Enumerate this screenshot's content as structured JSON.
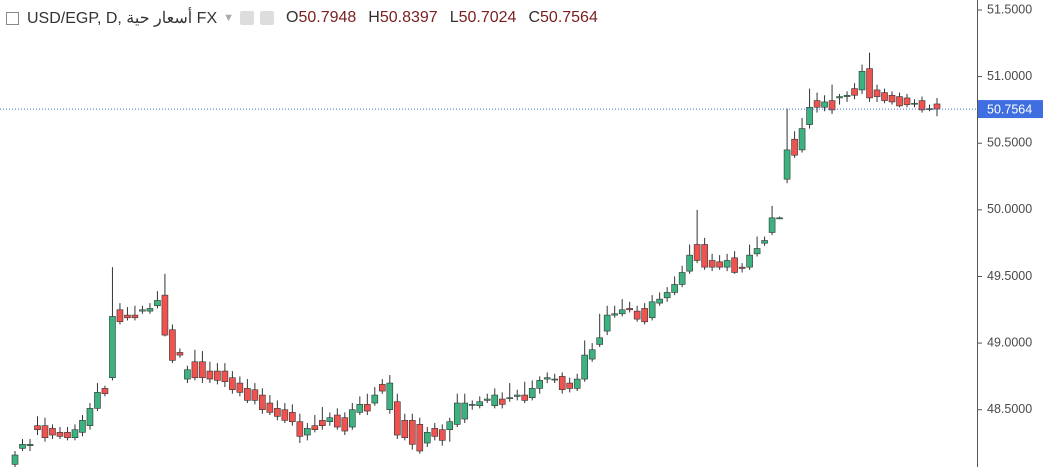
{
  "chart_data": {
    "type": "candlestick",
    "title": "USD/EGP, D, أسعار حية FX",
    "ohlc_labels": [
      "O",
      "H",
      "L",
      "C"
    ],
    "up_color": "#3bb27f",
    "down_color": "#ef5350",
    "price_line_color": "#3f6ee0",
    "ylim": [
      48.07,
      51.575
    ],
    "yticks": [
      {
        "value": 48.5,
        "label": "48.5000"
      },
      {
        "value": 49,
        "label": "49.0000"
      },
      {
        "value": 49.5,
        "label": "49.5000"
      },
      {
        "value": 50,
        "label": "50.0000"
      },
      {
        "value": 50.5,
        "label": "50.5000"
      },
      {
        "value": 51,
        "label": "51.0000"
      },
      {
        "value": 51.5,
        "label": "51.5000"
      }
    ],
    "open": [
      48.09,
      48.21,
      48.23,
      48.38,
      48.38,
      48.36,
      48.33,
      48.33,
      48.29,
      48.33,
      48.38,
      48.51,
      48.66,
      48.74,
      49.25,
      49.21,
      49.21,
      49.24,
      49.24,
      49.28,
      49.36,
      49.1,
      48.93,
      48.73,
      48.86,
      48.86,
      48.79,
      48.79,
      48.79,
      48.74,
      48.7,
      48.66,
      48.65,
      48.61,
      48.55,
      48.51,
      48.5,
      48.48,
      48.41,
      48.31,
      48.38,
      48.42,
      48.41,
      48.46,
      48.44,
      48.37,
      48.48,
      48.54,
      48.55,
      48.69,
      48.5,
      48.56,
      48.42,
      48.42,
      48.39,
      48.25,
      48.36,
      48.35,
      48.35,
      48.39,
      48.43,
      48.54,
      48.53,
      48.57,
      48.53,
      48.58,
      48.59,
      48.6,
      48.61,
      48.59,
      48.66,
      48.73,
      48.73,
      48.75,
      48.7,
      48.66,
      48.73,
      48.88,
      48.99,
      49.09,
      49.21,
      49.22,
      49.26,
      49.24,
      49.26,
      49.19,
      49.3,
      49.34,
      49.38,
      49.44,
      49.54,
      49.74,
      49.74,
      49.62,
      49.61,
      49.57,
      49.64,
      49.57,
      49.57,
      49.67,
      49.75,
      49.83,
      49.94,
      50.23,
      50.53,
      50.45,
      50.64,
      50.82,
      50.77,
      50.82,
      50.84,
      50.85,
      50.91,
      50.9,
      51.06,
      50.9,
      50.88,
      50.86,
      50.85,
      50.84,
      50.8,
      50.82,
      50.76,
      50.7948
    ],
    "high": [
      48.19,
      48.28,
      48.28,
      48.45,
      48.44,
      48.39,
      48.37,
      48.37,
      48.39,
      48.46,
      48.55,
      48.7,
      48.68,
      49.57,
      49.3,
      49.27,
      49.28,
      49.28,
      49.3,
      49.39,
      49.52,
      49.14,
      48.96,
      48.83,
      48.95,
      48.94,
      48.86,
      48.85,
      48.85,
      48.79,
      48.75,
      48.73,
      48.7,
      48.66,
      48.61,
      48.57,
      48.55,
      48.54,
      48.47,
      48.4,
      48.46,
      48.52,
      48.48,
      48.51,
      48.48,
      48.55,
      48.6,
      48.62,
      48.67,
      48.73,
      48.76,
      48.62,
      48.47,
      48.47,
      48.44,
      48.37,
      48.4,
      48.39,
      48.44,
      48.62,
      48.62,
      48.57,
      48.6,
      48.62,
      48.66,
      48.63,
      48.7,
      48.65,
      48.71,
      48.72,
      48.75,
      48.78,
      48.77,
      48.78,
      48.74,
      48.77,
      49.02,
      49,
      49.22,
      49.28,
      49.28,
      49.33,
      49.31,
      49.28,
      49.3,
      49.36,
      49.38,
      49.42,
      49.5,
      49.58,
      49.74,
      50,
      49.79,
      49.67,
      49.66,
      49.67,
      49.69,
      49.6,
      49.74,
      49.8,
      49.8,
      50.03,
      49.95,
      50.76,
      50.59,
      50.69,
      50.91,
      50.88,
      50.86,
      50.94,
      50.87,
      50.89,
      50.95,
      51.09,
      51.18,
      50.94,
      50.91,
      50.89,
      50.88,
      50.87,
      50.83,
      50.85,
      50.79,
      50.8397
    ],
    "low": [
      48.07,
      48.19,
      48.19,
      48.31,
      48.26,
      48.28,
      48.28,
      48.27,
      48.27,
      48.3,
      48.35,
      48.49,
      48.6,
      48.72,
      49.14,
      49.17,
      49.17,
      49.22,
      49.22,
      49.26,
      49.05,
      48.85,
      48.89,
      48.7,
      48.72,
      48.7,
      48.7,
      48.69,
      48.67,
      48.62,
      48.6,
      48.55,
      48.54,
      48.47,
      48.46,
      48.42,
      48.4,
      48.38,
      48.25,
      48.27,
      48.33,
      48.35,
      48.38,
      48.35,
      48.31,
      48.35,
      48.46,
      48.46,
      48.53,
      48.62,
      48.47,
      48.28,
      48.27,
      48.2,
      48.17,
      48.22,
      48.27,
      48.23,
      48.26,
      48.37,
      48.4,
      48.5,
      48.51,
      48.55,
      48.51,
      48.51,
      48.56,
      48.57,
      48.55,
      48.57,
      48.62,
      48.7,
      48.7,
      48.62,
      48.63,
      48.64,
      48.71,
      48.86,
      48.97,
      49.06,
      49.19,
      49.2,
      49.23,
      49.16,
      49.14,
      49.17,
      49.28,
      49.31,
      49.36,
      49.42,
      49.52,
      49.6,
      49.55,
      49.54,
      49.55,
      49.54,
      49.52,
      49.53,
      49.55,
      49.65,
      49.73,
      49.81,
      49.93,
      50.2,
      50.39,
      50.43,
      50.61,
      50.73,
      50.74,
      50.72,
      50.79,
      50.81,
      50.83,
      50.87,
      50.81,
      50.81,
      50.8,
      50.79,
      50.77,
      50.77,
      50.77,
      50.73,
      50.74,
      50.7024
    ],
    "close": [
      48.16,
      48.24,
      48.24,
      48.35,
      48.29,
      48.31,
      48.3,
      48.29,
      48.35,
      48.42,
      48.51,
      48.63,
      48.62,
      49.2,
      49.16,
      49.19,
      49.19,
      49.25,
      49.26,
      49.32,
      49.06,
      48.87,
      48.91,
      48.8,
      48.74,
      48.74,
      48.73,
      48.72,
      48.71,
      48.65,
      48.63,
      48.57,
      48.57,
      48.5,
      48.48,
      48.45,
      48.42,
      48.41,
      48.3,
      48.36,
      48.35,
      48.38,
      48.44,
      48.37,
      48.34,
      48.5,
      48.54,
      48.49,
      48.61,
      48.64,
      48.7,
      48.31,
      48.29,
      48.24,
      48.19,
      48.33,
      48.3,
      48.27,
      48.41,
      48.55,
      48.55,
      48.54,
      48.56,
      48.58,
      48.61,
      48.54,
      48.59,
      48.61,
      48.57,
      48.66,
      48.72,
      48.74,
      48.73,
      48.65,
      48.66,
      48.73,
      48.91,
      48.95,
      49.04,
      49.21,
      49.22,
      49.25,
      49.25,
      49.18,
      49.16,
      49.31,
      49.33,
      49.38,
      49.44,
      49.53,
      49.66,
      49.62,
      49.57,
      49.57,
      49.57,
      49.62,
      49.53,
      49.56,
      49.66,
      49.71,
      49.77,
      49.94,
      49.94,
      50.45,
      50.41,
      50.61,
      50.77,
      50.77,
      50.81,
      50.75,
      50.85,
      50.86,
      50.86,
      51.04,
      50.84,
      50.85,
      50.82,
      50.81,
      50.78,
      50.79,
      50.8,
      50.75,
      50.76,
      50.7564
    ]
  }
}
